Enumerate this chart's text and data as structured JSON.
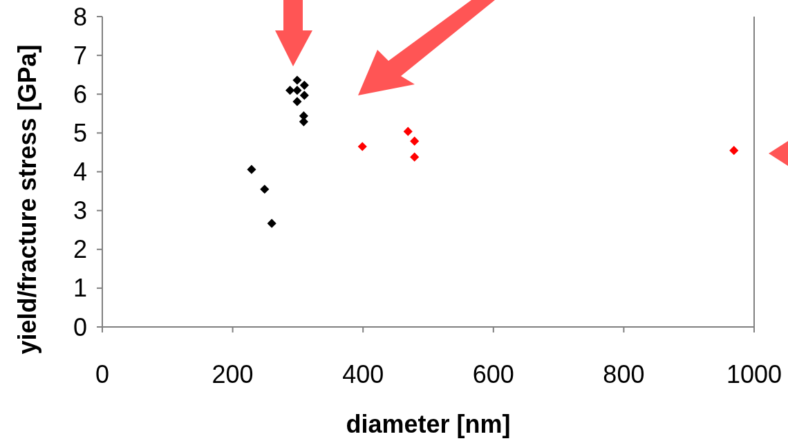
{
  "chart_data": {
    "type": "scatter",
    "xlabel": "diameter [nm]",
    "ylabel": "yield/fracture stress [GPa]",
    "xlim": [
      0,
      1000
    ],
    "ylim": [
      0,
      8
    ],
    "xticks": [
      0,
      200,
      400,
      600,
      800,
      1000
    ],
    "yticks": [
      0,
      1,
      2,
      3,
      4,
      5,
      6,
      7,
      8
    ],
    "grid": false,
    "marker": "diamond",
    "series": [
      {
        "color": "#000000",
        "x": [
          229,
          249,
          260,
          299,
          310,
          288,
          299,
          310,
          299,
          309,
          309
        ],
        "values": [
          4.06,
          3.55,
          2.67,
          6.36,
          6.23,
          6.1,
          6.1,
          5.97,
          5.81,
          5.44,
          5.29
        ]
      },
      {
        "color": "#ff0000",
        "x": [
          399,
          469,
          479,
          479,
          969
        ],
        "values": [
          4.65,
          5.04,
          4.79,
          4.38,
          4.55
        ]
      }
    ]
  }
}
